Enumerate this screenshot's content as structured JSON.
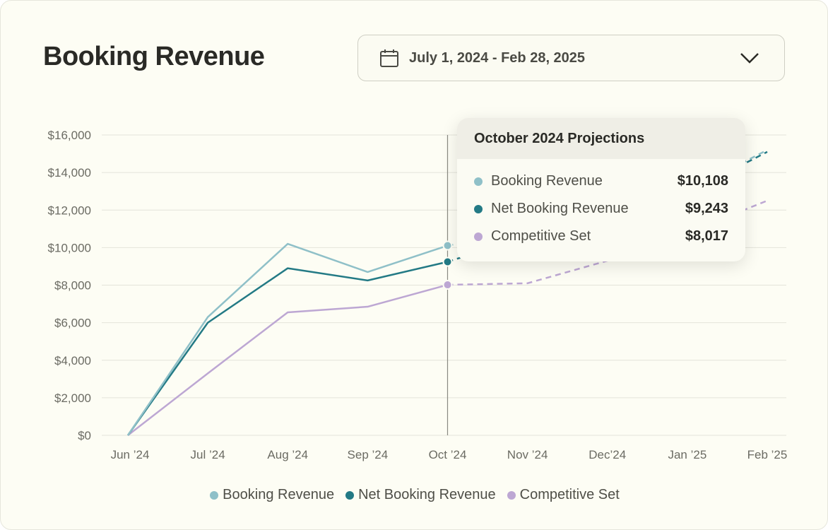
{
  "header": {
    "title": "Booking Revenue",
    "date_range": "July 1, 2024 - Feb 28, 2025",
    "calendar_icon": "calendar-icon",
    "dropdown_icon": "chevron-down-icon"
  },
  "tooltip": {
    "title": "October 2024 Projections",
    "rows": [
      {
        "label": "Booking Revenue",
        "value": "$10,108"
      },
      {
        "label": "Net Booking Revenue",
        "value": "$9,243"
      },
      {
        "label": "Competitive Set",
        "value": "$8,017"
      }
    ]
  },
  "chart_data": {
    "type": "line",
    "title": "Booking Revenue",
    "categories": [
      "Jun ’24",
      "Jul ’24",
      "Aug ’24",
      "Sep ’24",
      "Oct ’24",
      "Nov ’24",
      "Dec’24",
      "Jan ’25",
      "Feb ’25"
    ],
    "yticks": [
      "$0",
      "$2,000",
      "$4,000",
      "$6,000",
      "$8,000",
      "$10,000",
      "$12,000",
      "$14,000",
      "$16,000"
    ],
    "ylim": [
      0,
      16000
    ],
    "grid": true,
    "actual_through_index": 4,
    "highlight_index": 4,
    "legend_position": "bottom",
    "series": [
      {
        "name": "Booking Revenue",
        "color": "#8fc0c8",
        "values": [
          0,
          6300,
          10200,
          8700,
          10108,
          10800,
          11800,
          13000,
          15200
        ]
      },
      {
        "name": "Net Booking Revenue",
        "color": "#237a85",
        "values": [
          0,
          6000,
          8900,
          8250,
          9243,
          10600,
          11700,
          12900,
          15100
        ]
      },
      {
        "name": "Competitive Set",
        "color": "#bda7d3",
        "values": [
          0,
          3300,
          6550,
          6850,
          8017,
          8100,
          9300,
          10800,
          12500
        ]
      }
    ]
  }
}
